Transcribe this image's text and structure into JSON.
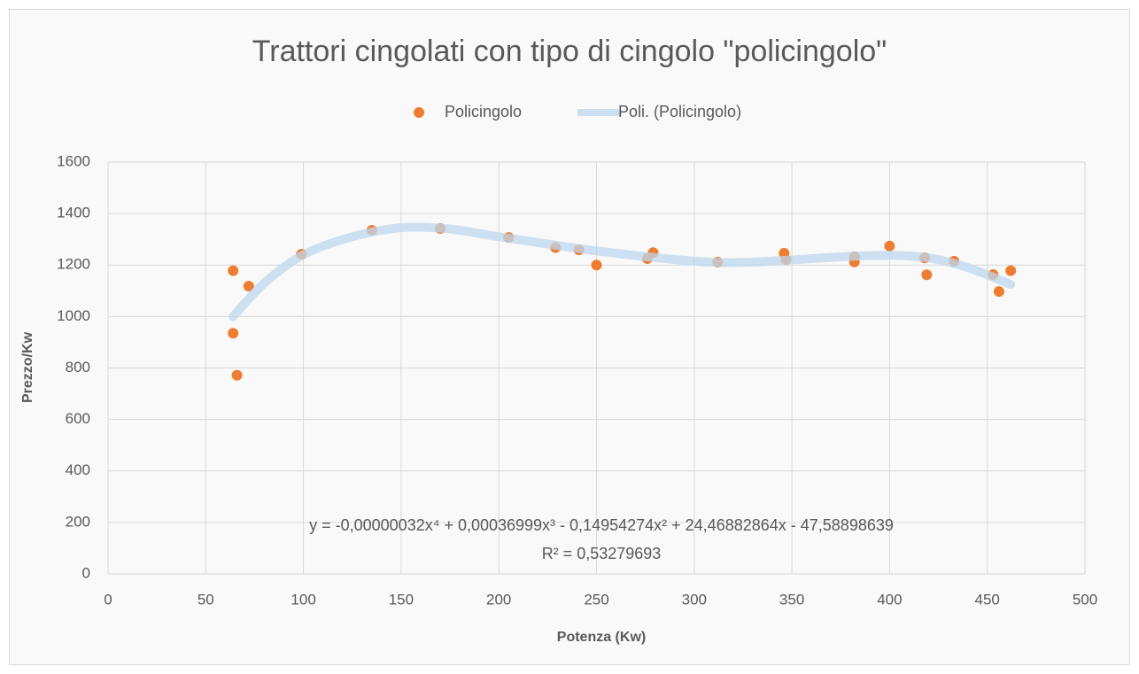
{
  "chart_data": {
    "type": "scatter",
    "title": "Trattori cingolati con tipo di cingolo \"policingolo\"",
    "x_label": "Potenza (Kw)",
    "y_label": "Prezzo/Kw",
    "annotations": [
      "y = -0,00000032x⁴ + 0,00036999x³ - 0,14954274x² + 24,46882864x - 47,58898639",
      "R² = 0,53279693"
    ],
    "xlim": [
      0,
      500
    ],
    "xticks": [
      0,
      50,
      100,
      150,
      200,
      250,
      300,
      350,
      400,
      450,
      500
    ],
    "ylim": [
      0,
      1600
    ],
    "yticks": [
      0,
      200,
      400,
      600,
      800,
      1000,
      1200,
      1400,
      1600
    ],
    "grid": true,
    "legend": "top",
    "series": [
      {
        "name": "Policingolo",
        "color": "#ed7d31",
        "style": "points",
        "x": [
          64,
          64,
          66,
          72,
          99,
          135,
          170,
          205,
          229,
          241,
          250,
          276,
          279,
          312,
          346,
          347,
          382,
          382,
          400,
          418,
          419,
          433,
          453,
          456,
          462
        ],
        "values": [
          1178,
          935,
          772,
          1118,
          1242,
          1335,
          1342,
          1307,
          1268,
          1259,
          1200,
          1225,
          1248,
          1211,
          1246,
          1221,
          1212,
          1232,
          1274,
          1228,
          1162,
          1215,
          1163,
          1097,
          1178
        ]
      },
      {
        "name": "Poli. (Policingolo)",
        "color": "#bdd7ee",
        "style": "trendline",
        "x": [
          64,
          80,
          100,
          125,
          150,
          175,
          200,
          250,
          300,
          325,
          350,
          375,
          400,
          420,
          440,
          462
        ],
        "values": [
          1000,
          1130,
          1240,
          1310,
          1345,
          1340,
          1310,
          1255,
          1215,
          1210,
          1220,
          1232,
          1238,
          1228,
          1190,
          1125
        ]
      }
    ]
  }
}
